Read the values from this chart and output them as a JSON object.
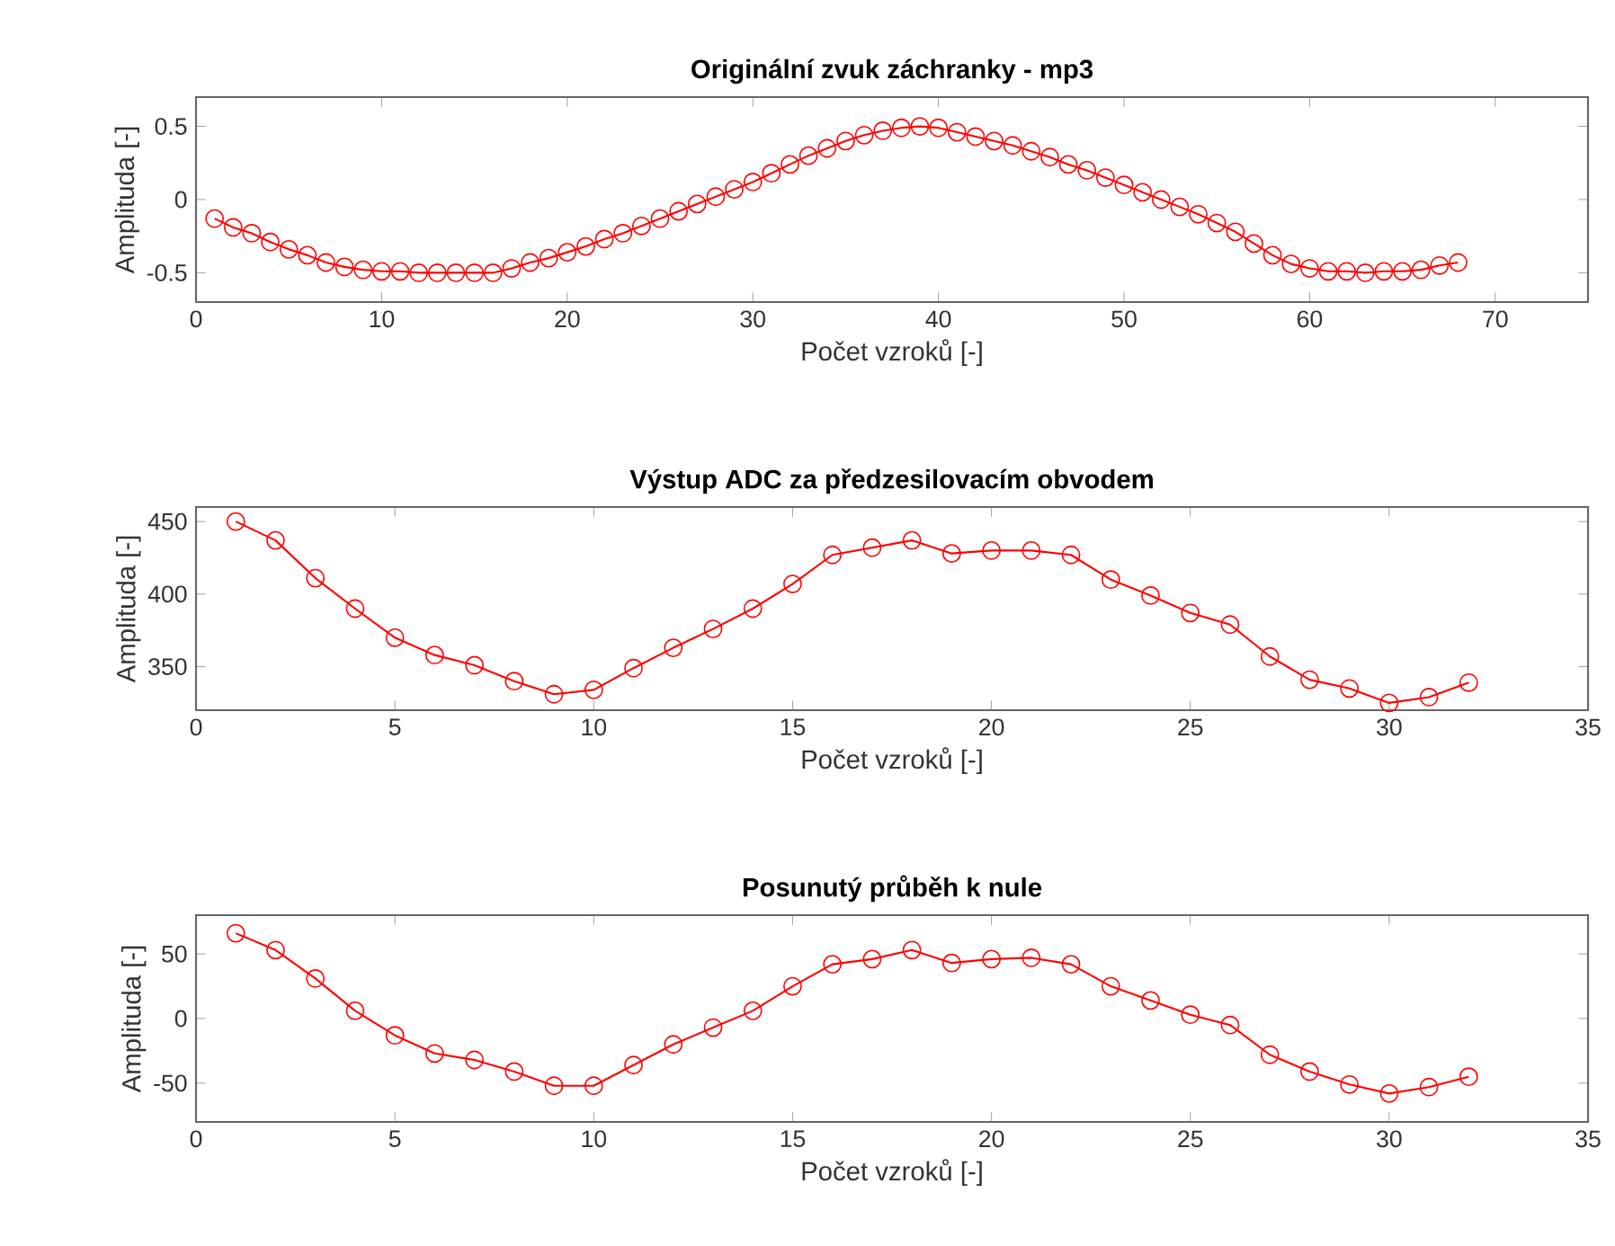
{
  "chart_data": [
    {
      "type": "line",
      "title": "Originální zvuk záchranky - mp3",
      "xlabel": "Počet vzroků [-]",
      "ylabel": "Amplituda [-]",
      "marker": "circle",
      "line_style": "solid",
      "xlim": [
        0,
        75
      ],
      "ylim": [
        -0.7,
        0.7
      ],
      "xticks": [
        0,
        10,
        20,
        30,
        40,
        50,
        60,
        70
      ],
      "yticks": [
        -0.5,
        0,
        0.5
      ],
      "x": [
        1,
        2,
        3,
        4,
        5,
        6,
        7,
        8,
        9,
        10,
        11,
        12,
        13,
        14,
        15,
        16,
        17,
        18,
        19,
        20,
        21,
        22,
        23,
        24,
        25,
        26,
        27,
        28,
        29,
        30,
        31,
        32,
        33,
        34,
        35,
        36,
        37,
        38,
        39,
        40,
        41,
        42,
        43,
        44,
        45,
        46,
        47,
        48,
        49,
        50,
        51,
        52,
        53,
        54,
        55,
        56,
        57,
        58,
        59,
        60,
        61,
        62,
        63,
        64,
        65,
        66,
        67,
        68
      ],
      "series": [
        {
          "color": "#ff0000",
          "values": [
            -0.13,
            -0.19,
            -0.23,
            -0.29,
            -0.34,
            -0.38,
            -0.43,
            -0.46,
            -0.48,
            -0.49,
            -0.49,
            -0.5,
            -0.5,
            -0.5,
            -0.5,
            -0.5,
            -0.47,
            -0.43,
            -0.4,
            -0.36,
            -0.32,
            -0.27,
            -0.23,
            -0.18,
            -0.13,
            -0.08,
            -0.03,
            0.02,
            0.07,
            0.12,
            0.18,
            0.24,
            0.3,
            0.35,
            0.4,
            0.44,
            0.47,
            0.49,
            0.5,
            0.49,
            0.46,
            0.43,
            0.4,
            0.37,
            0.33,
            0.29,
            0.24,
            0.2,
            0.15,
            0.1,
            0.05,
            0.0,
            -0.05,
            -0.1,
            -0.16,
            -0.22,
            -0.3,
            -0.38,
            -0.44,
            -0.47,
            -0.49,
            -0.49,
            -0.5,
            -0.49,
            -0.49,
            -0.48,
            -0.45,
            -0.43
          ]
        }
      ]
    },
    {
      "type": "line",
      "title": "Výstup ADC za předzesilovacím obvodem",
      "xlabel": "Počet vzroků [-]",
      "ylabel": "Amplituda [-]",
      "marker": "circle",
      "line_style": "solid",
      "xlim": [
        0,
        35
      ],
      "ylim": [
        320,
        460
      ],
      "xticks": [
        0,
        5,
        10,
        15,
        20,
        25,
        30,
        35
      ],
      "yticks": [
        350,
        400,
        450
      ],
      "x": [
        1,
        2,
        3,
        4,
        5,
        6,
        7,
        8,
        9,
        10,
        11,
        12,
        13,
        14,
        15,
        16,
        17,
        18,
        19,
        20,
        21,
        22,
        23,
        24,
        25,
        26,
        27,
        28,
        29,
        30,
        31,
        32
      ],
      "series": [
        {
          "color": "#ff0000",
          "values": [
            450,
            437,
            411,
            390,
            370,
            358,
            351,
            340,
            331,
            334,
            349,
            363,
            376,
            390,
            407,
            427,
            432,
            437,
            428,
            430,
            430,
            427,
            410,
            399,
            387,
            379,
            357,
            341,
            335,
            325,
            329,
            339
          ]
        }
      ]
    },
    {
      "type": "line",
      "title": "Posunutý průběh k nule",
      "xlabel": "Počet vzroků [-]",
      "ylabel": "Amplituda [-]",
      "marker": "circle",
      "line_style": "solid",
      "xlim": [
        0,
        35
      ],
      "ylim": [
        -80,
        80
      ],
      "xticks": [
        0,
        5,
        10,
        15,
        20,
        25,
        30,
        35
      ],
      "yticks": [
        -50,
        0,
        50
      ],
      "x": [
        1,
        2,
        3,
        4,
        5,
        6,
        7,
        8,
        9,
        10,
        11,
        12,
        13,
        14,
        15,
        16,
        17,
        18,
        19,
        20,
        21,
        22,
        23,
        24,
        25,
        26,
        27,
        28,
        29,
        30,
        31,
        32
      ],
      "series": [
        {
          "color": "#ff0000",
          "values": [
            66,
            53,
            31,
            6,
            -13,
            -27,
            -32,
            -41,
            -52,
            -52,
            -36,
            -20,
            -7,
            6,
            25,
            42,
            46,
            53,
            43,
            46,
            47,
            42,
            25,
            14,
            3,
            -5,
            -28,
            -41,
            -51,
            -58,
            -53,
            -45
          ]
        }
      ]
    }
  ]
}
